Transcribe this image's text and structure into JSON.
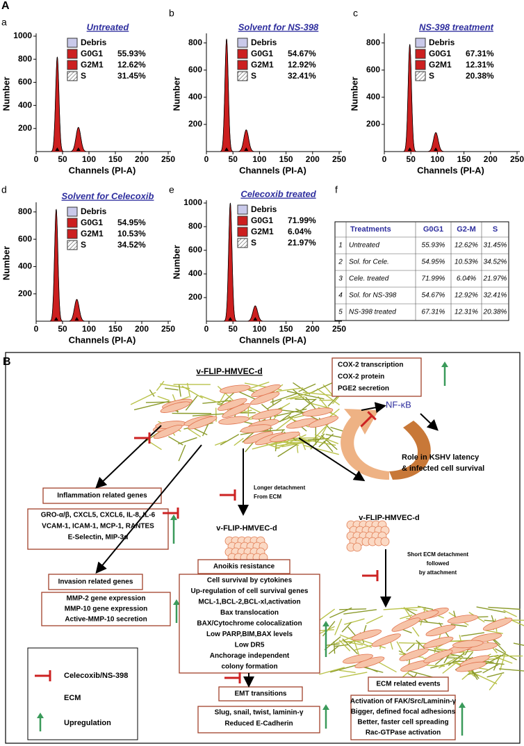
{
  "panel_a": {
    "label": "A",
    "histograms": [
      {
        "letter": "a",
        "title": "Untreated",
        "y_label": "Number",
        "x_label": "Channels (PI-A)",
        "xlim": [
          0,
          250
        ],
        "xticks": [
          0,
          50,
          100,
          150,
          200,
          250
        ],
        "ylim": [
          0,
          1000
        ],
        "yticks": [
          200,
          400,
          600,
          800,
          1000
        ],
        "legend": [
          {
            "name": "Debris"
          },
          {
            "name": "G0G1",
            "value": "55.93%"
          },
          {
            "name": "G2M1",
            "value": "12.62%"
          },
          {
            "name": "S",
            "value": "31.45%"
          }
        ],
        "peaks": {
          "x": [
            40,
            80
          ],
          "heights": [
            820,
            210
          ]
        }
      },
      {
        "letter": "b",
        "title": "Solvent for NS-398",
        "y_label": "Number",
        "x_label": "Channels (PI-A)",
        "xlim": [
          0,
          250
        ],
        "xticks": [
          0,
          50,
          100,
          150,
          200,
          250
        ],
        "ylim": [
          0,
          850
        ],
        "yticks": [
          200,
          400,
          600,
          800
        ],
        "legend": [
          {
            "name": "Debris"
          },
          {
            "name": "G0G1",
            "value": "54.67%"
          },
          {
            "name": "G2M1",
            "value": "12.92%"
          },
          {
            "name": "S",
            "value": "32.41%"
          }
        ],
        "peaks": {
          "x": [
            38,
            75
          ],
          "heights": [
            830,
            160
          ]
        }
      },
      {
        "letter": "c",
        "title": "NS-398 treatment",
        "y_label": "Number",
        "x_label": "Channels (PI-A)",
        "xlim": [
          0,
          250
        ],
        "xticks": [
          0,
          50,
          100,
          150,
          200,
          250
        ],
        "ylim": [
          0,
          850
        ],
        "yticks": [
          200,
          400,
          600,
          800
        ],
        "legend": [
          {
            "name": "Debris"
          },
          {
            "name": "G0G1",
            "value": "67.31%"
          },
          {
            "name": "G2M1",
            "value": "12.31%"
          },
          {
            "name": "S",
            "value": "20.38%"
          }
        ],
        "peaks": {
          "x": [
            48,
            97
          ],
          "heights": [
            790,
            140
          ]
        }
      },
      {
        "letter": "d",
        "title": "Solvent for Celecoxib",
        "y_label": "Number",
        "x_label": "Channels (PI-A)",
        "xlim": [
          0,
          250
        ],
        "xticks": [
          0,
          50,
          100,
          150,
          200,
          250
        ],
        "ylim": [
          0,
          850
        ],
        "yticks": [
          200,
          400,
          600,
          800
        ],
        "legend": [
          {
            "name": "Debris"
          },
          {
            "name": "G0G1",
            "value": "54.95%"
          },
          {
            "name": "G2M1",
            "value": "10.53%"
          },
          {
            "name": "S",
            "value": "34.52%"
          }
        ],
        "peaks": {
          "x": [
            38,
            77
          ],
          "heights": [
            820,
            160
          ]
        }
      },
      {
        "letter": "e",
        "title": "Celecoxib treated",
        "y_label": "Number",
        "x_label": "Channels (PI-A)",
        "xlim": [
          0,
          250
        ],
        "xticks": [
          0,
          50,
          100,
          150,
          200,
          250
        ],
        "ylim": [
          0,
          1000
        ],
        "yticks": [
          200,
          400,
          600,
          800,
          1000
        ],
        "legend": [
          {
            "name": "Debris"
          },
          {
            "name": "G0G1",
            "value": "71.99%"
          },
          {
            "name": "G2M1",
            "value": "6.04%"
          },
          {
            "name": "S",
            "value": "21.97%"
          }
        ],
        "peaks": {
          "x": [
            45,
            92
          ],
          "heights": [
            1000,
            130
          ]
        }
      }
    ],
    "table": {
      "letter": "f",
      "header": [
        "Treatments",
        "G0G1",
        "G2-M",
        "S"
      ],
      "rows": [
        [
          "1",
          "Untreated",
          "55.93%",
          "12.62%",
          "31.45%"
        ],
        [
          "2",
          "Sol. for Cele.",
          "54.95%",
          "10.53%",
          "34.52%"
        ],
        [
          "3",
          "Cele. treated",
          "71.99%",
          "6.04%",
          "21.97%"
        ],
        [
          "4",
          "Sol. for NS-398",
          "54.67%",
          "12.92%",
          "32.41%"
        ],
        [
          "5",
          "NS-398 treated",
          "67.31%",
          "12.31%",
          "20.38%"
        ]
      ]
    }
  },
  "panel_b": {
    "label": "B",
    "top_cell": "v-FLIP-HMVEC-d",
    "cox_box": [
      "COX-2 transcription",
      "COX-2 protein",
      "PGE2 secretion"
    ],
    "nfkb": "NF-κB",
    "nfkb_role": [
      "Role in KSHV latency",
      "& infected cell survival"
    ],
    "inflammation": {
      "title": "Inflammation related genes",
      "lines": [
        "GRO-α/β, CXCL5, CXCL6, IL-8, IL-6",
        "VCAM-1, ICAM-1, MCP-1, RANTES",
        "E-Selectin, MIP-3α"
      ]
    },
    "detachment_long": [
      "Longer detachment",
      "From ECM"
    ],
    "middle_cell": "v-FLIP-HMVEC-d",
    "right_cell": "v-FLIP-HMVEC-d",
    "detachment_short": [
      "Short  ECM detachment",
      "followed",
      "by attachment"
    ],
    "invasion": {
      "title": "Invasion related genes",
      "lines": [
        "MMP-2 gene expression",
        "MMP-10 gene expression",
        "Active-MMP-10 secretion"
      ]
    },
    "anoikis": {
      "title": "Anoikis resistance",
      "lines": [
        "Cell survival by cytokines",
        "Up-regulation of cell survival genes",
        "MCL-1,BCL-2,BCL-xl,activation",
        "Bax translocation",
        "BAX/Cytochrome colocalization",
        "Low PARP,BIM,BAX levels",
        "Low DR5",
        "Anchorage independent",
        "colony formation"
      ]
    },
    "emt": {
      "title": "EMT transitions",
      "lines": [
        "Slug, snail, twist, laminin-γ",
        "Reduced E-Cadherin"
      ]
    },
    "ecm_events": {
      "title": "ECM related events",
      "lines": [
        "Activation of FAK/Src/Laminin-γ",
        "Bigger, defined focal adhesions",
        "Better, faster cell spreading",
        "Rac-GTPase activation"
      ]
    },
    "legend": [
      "Celecoxib/NS-398",
      "ECM",
      "Upregulation"
    ]
  }
}
